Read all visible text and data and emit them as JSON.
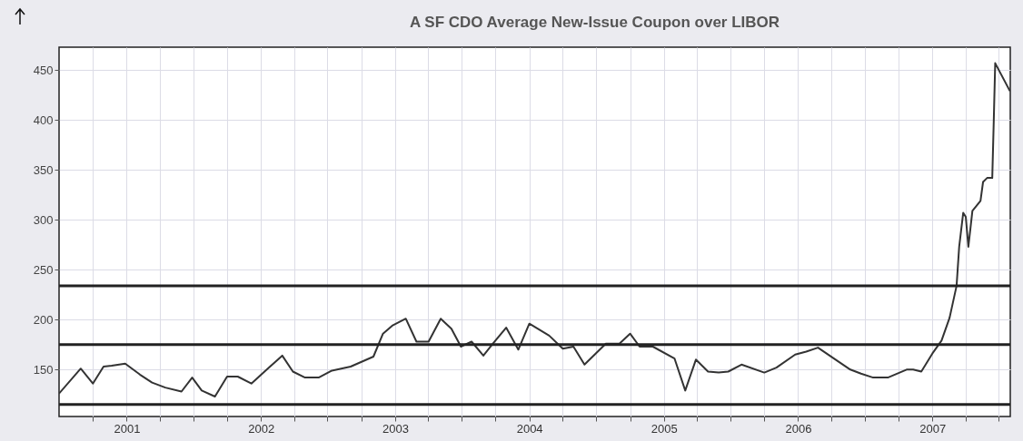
{
  "chart_data": {
    "type": "line",
    "title": "A SF CDO Average New-Issue Coupon over LIBOR",
    "x": [
      "2000-07-01",
      "2000-08-29",
      "2000-10-01",
      "2000-10-30",
      "2000-11-21",
      "2000-12-28",
      "2001-02-06",
      "2001-03-11",
      "2001-04-16",
      "2001-05-30",
      "2001-06-28",
      "2001-07-24",
      "2001-08-29",
      "2001-10-01",
      "2001-10-30",
      "2001-12-06",
      "2002-01-23",
      "2002-02-28",
      "2002-03-29",
      "2002-05-01",
      "2002-06-07",
      "2002-07-13",
      "2002-09-02",
      "2002-11-03",
      "2002-11-29",
      "2002-12-24",
      "2003-01-30",
      "2003-02-28",
      "2003-04-02",
      "2003-05-05",
      "2003-06-03",
      "2003-06-29",
      "2003-07-28",
      "2003-08-29",
      "2003-09-24",
      "2003-10-30",
      "2003-12-02",
      "2004-01-01",
      "2004-02-24",
      "2004-04-01",
      "2004-04-30",
      "2004-05-30",
      "2004-07-27",
      "2004-09-02",
      "2004-10-01",
      "2004-10-27",
      "2004-12-02",
      "2005-01-30",
      "2005-02-28",
      "2005-03-29",
      "2005-05-01",
      "2005-05-30",
      "2005-06-25",
      "2005-07-31",
      "2005-10-01",
      "2005-11-03",
      "2005-12-24",
      "2006-01-23",
      "2006-02-24",
      "2006-04-13",
      "2006-05-23",
      "2006-06-21",
      "2006-07-24",
      "2006-09-02",
      "2006-10-23",
      "2006-11-10",
      "2006-12-02",
      "2007-01-01",
      "2007-01-26",
      "2007-02-17",
      "2007-03-08",
      "2007-03-15",
      "2007-03-26",
      "2007-04-02",
      "2007-04-09",
      "2007-04-20",
      "2007-05-12",
      "2007-05-19",
      "2007-05-30",
      "2007-06-13",
      "2007-06-17",
      "2007-06-21",
      "2007-07-31"
    ],
    "series": [
      {
        "color": "#333333",
        "values": [
          126,
          151,
          136,
          153,
          154,
          156,
          145,
          137,
          132,
          128,
          142,
          129,
          123,
          143,
          143,
          136,
          152,
          164,
          148,
          142,
          142,
          149,
          153,
          163,
          186,
          194,
          201,
          178,
          178,
          201,
          191,
          173,
          178,
          164,
          176,
          192,
          170,
          196,
          184,
          171,
          173,
          155,
          176,
          176,
          186,
          173,
          173,
          161,
          129,
          160,
          148,
          147,
          148,
          155,
          147,
          152,
          165,
          168,
          172,
          160,
          150,
          146,
          142,
          142,
          150,
          150,
          148,
          166,
          179,
          202,
          234,
          273,
          307,
          303,
          273,
          309,
          319,
          338,
          342,
          342,
          398,
          457,
          429
        ]
      }
    ],
    "xlim": [
      "2000-07-01",
      "2007-08-01"
    ],
    "xticks": [
      {
        "value": "2000-10-01",
        "label": null
      },
      {
        "value": "2001-01-01",
        "label": "2001"
      },
      {
        "value": "2001-04-01",
        "label": null
      },
      {
        "value": "2001-07-01",
        "label": null
      },
      {
        "value": "2001-10-01",
        "label": null
      },
      {
        "value": "2002-01-01",
        "label": "2002"
      },
      {
        "value": "2002-04-01",
        "label": null
      },
      {
        "value": "2002-07-01",
        "label": null
      },
      {
        "value": "2002-10-01",
        "label": null
      },
      {
        "value": "2003-01-01",
        "label": "2003"
      },
      {
        "value": "2003-04-01",
        "label": null
      },
      {
        "value": "2003-07-01",
        "label": null
      },
      {
        "value": "2003-10-01",
        "label": null
      },
      {
        "value": "2004-01-01",
        "label": "2004"
      },
      {
        "value": "2004-04-01",
        "label": null
      },
      {
        "value": "2004-07-01",
        "label": null
      },
      {
        "value": "2004-10-01",
        "label": null
      },
      {
        "value": "2005-01-01",
        "label": "2005"
      },
      {
        "value": "2005-04-01",
        "label": null
      },
      {
        "value": "2005-07-01",
        "label": null
      },
      {
        "value": "2005-10-01",
        "label": null
      },
      {
        "value": "2006-01-01",
        "label": "2006"
      },
      {
        "value": "2006-04-01",
        "label": null
      },
      {
        "value": "2006-07-01",
        "label": null
      },
      {
        "value": "2006-10-01",
        "label": null
      },
      {
        "value": "2007-01-01",
        "label": "2007"
      },
      {
        "value": "2007-04-01",
        "label": null
      },
      {
        "value": "2007-07-01",
        "label": null
      }
    ],
    "ylim": [
      103,
      473
    ],
    "yticks": [
      150,
      200,
      250,
      300,
      350,
      400,
      450
    ],
    "grid": true,
    "ref_lines": [
      {
        "axis": "y",
        "value": 234,
        "color": "#222222"
      },
      {
        "axis": "y",
        "value": 175,
        "color": "#222222"
      },
      {
        "axis": "y",
        "value": 115,
        "color": "#222222"
      }
    ]
  }
}
